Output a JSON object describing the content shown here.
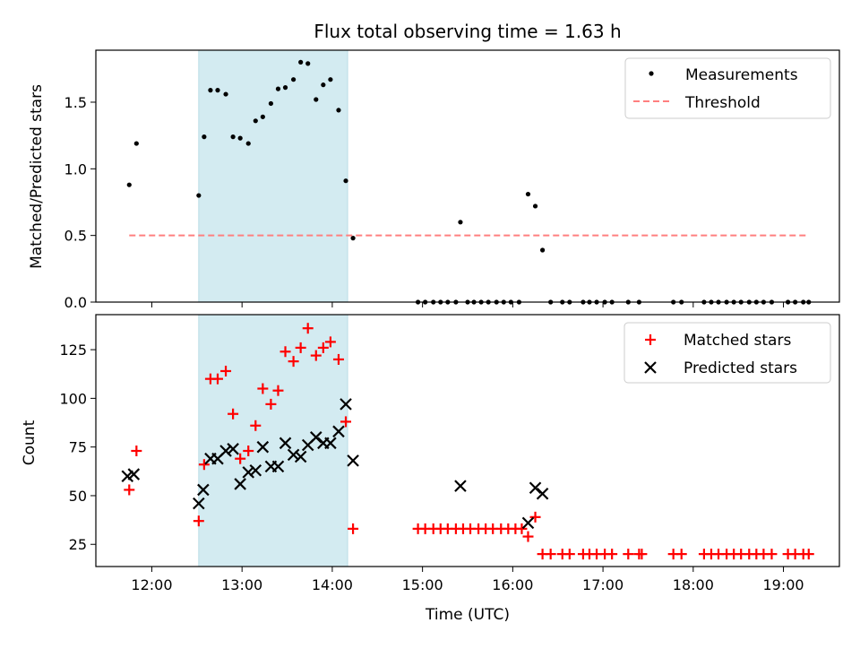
{
  "chart_data": [
    {
      "type": "scatter",
      "title": "Flux total observing time = 1.63 h",
      "xlabel": "",
      "ylabel": "Matched/Predicted stars",
      "x_unit": "hours (UTC)",
      "xlim": [
        11.38,
        19.62
      ],
      "ylim": [
        0,
        1.89
      ],
      "yticks": [
        0.0,
        0.5,
        1.0,
        1.5
      ],
      "ytick_labels": [
        "0.0",
        "0.5",
        "1.0",
        "1.5"
      ],
      "highlight_span": [
        12.52,
        14.17
      ],
      "highlight_color": "#d3ebf1",
      "legend": {
        "position": "top-right",
        "entries": [
          "Measurements",
          "Threshold"
        ]
      },
      "series": [
        {
          "name": "Measurements",
          "marker": "dot",
          "color": "#000000",
          "points": [
            [
              11.75,
              0.88
            ],
            [
              11.83,
              1.19
            ],
            [
              12.52,
              0.8
            ],
            [
              12.58,
              1.24
            ],
            [
              12.65,
              1.59
            ],
            [
              12.73,
              1.59
            ],
            [
              12.82,
              1.56
            ],
            [
              12.9,
              1.24
            ],
            [
              12.98,
              1.23
            ],
            [
              13.07,
              1.19
            ],
            [
              13.15,
              1.36
            ],
            [
              13.23,
              1.39
            ],
            [
              13.32,
              1.49
            ],
            [
              13.4,
              1.6
            ],
            [
              13.48,
              1.61
            ],
            [
              13.57,
              1.67
            ],
            [
              13.65,
              1.8
            ],
            [
              13.73,
              1.79
            ],
            [
              13.82,
              1.52
            ],
            [
              13.9,
              1.63
            ],
            [
              13.98,
              1.67
            ],
            [
              14.07,
              1.44
            ],
            [
              14.15,
              0.91
            ],
            [
              14.23,
              0.48
            ],
            [
              14.95,
              0
            ],
            [
              15.03,
              0
            ],
            [
              15.12,
              0
            ],
            [
              15.2,
              0
            ],
            [
              15.28,
              0
            ],
            [
              15.37,
              0
            ],
            [
              15.42,
              0.6
            ],
            [
              15.5,
              0
            ],
            [
              15.57,
              0
            ],
            [
              15.65,
              0
            ],
            [
              15.73,
              0
            ],
            [
              15.82,
              0
            ],
            [
              15.9,
              0
            ],
            [
              15.98,
              0
            ],
            [
              16.07,
              0
            ],
            [
              16.17,
              0.81
            ],
            [
              16.25,
              0.72
            ],
            [
              16.33,
              0.39
            ],
            [
              16.42,
              0
            ],
            [
              16.55,
              0
            ],
            [
              16.63,
              0
            ],
            [
              16.78,
              0
            ],
            [
              16.85,
              0
            ],
            [
              16.93,
              0
            ],
            [
              17.02,
              0
            ],
            [
              17.1,
              0
            ],
            [
              17.28,
              0
            ],
            [
              17.4,
              0
            ],
            [
              17.78,
              0
            ],
            [
              17.87,
              0
            ],
            [
              18.12,
              0
            ],
            [
              18.2,
              0
            ],
            [
              18.28,
              0
            ],
            [
              18.37,
              0
            ],
            [
              18.45,
              0
            ],
            [
              18.53,
              0
            ],
            [
              18.62,
              0
            ],
            [
              18.7,
              0
            ],
            [
              18.78,
              0
            ],
            [
              18.87,
              0
            ],
            [
              19.05,
              0
            ],
            [
              19.13,
              0
            ],
            [
              19.22,
              0
            ],
            [
              19.28,
              0
            ]
          ]
        },
        {
          "name": "Threshold",
          "style": "dashed",
          "color": "#ff7f7f",
          "points": [
            [
              11.75,
              0.5
            ],
            [
              19.28,
              0.5
            ]
          ]
        }
      ]
    },
    {
      "type": "scatter",
      "title": "",
      "xlabel": "Time (UTC)",
      "ylabel": "Count",
      "x_unit": "hours (UTC)",
      "xlim": [
        11.38,
        19.62
      ],
      "ylim": [
        13.6,
        143.0
      ],
      "yticks": [
        25,
        50,
        75,
        100,
        125
      ],
      "ytick_labels": [
        "25",
        "50",
        "75",
        "100",
        "125"
      ],
      "xticks": [
        12,
        13,
        14,
        15,
        16,
        17,
        18,
        19
      ],
      "xtick_labels": [
        "12:00",
        "13:00",
        "14:00",
        "15:00",
        "16:00",
        "17:00",
        "18:00",
        "19:00"
      ],
      "highlight_span": [
        12.52,
        14.17
      ],
      "highlight_color": "#d3ebf1",
      "legend": {
        "position": "top-right",
        "entries": [
          "Matched stars",
          "Predicted stars"
        ]
      },
      "series": [
        {
          "name": "Matched stars",
          "marker": "plus",
          "color": "#ff0000",
          "points": [
            [
              11.75,
              53
            ],
            [
              11.83,
              73
            ],
            [
              12.52,
              37
            ],
            [
              12.58,
              66
            ],
            [
              12.65,
              110
            ],
            [
              12.73,
              110
            ],
            [
              12.82,
              114
            ],
            [
              12.9,
              92
            ],
            [
              12.98,
              69
            ],
            [
              13.07,
              73
            ],
            [
              13.15,
              86
            ],
            [
              13.23,
              105
            ],
            [
              13.32,
              97
            ],
            [
              13.4,
              104
            ],
            [
              13.48,
              124
            ],
            [
              13.57,
              119
            ],
            [
              13.65,
              126
            ],
            [
              13.73,
              136
            ],
            [
              13.82,
              122
            ],
            [
              13.9,
              126
            ],
            [
              13.98,
              129
            ],
            [
              14.07,
              120
            ],
            [
              14.15,
              88
            ],
            [
              14.23,
              33
            ],
            [
              14.95,
              33
            ],
            [
              15.03,
              33
            ],
            [
              15.12,
              33
            ],
            [
              15.2,
              33
            ],
            [
              15.28,
              33
            ],
            [
              15.37,
              33
            ],
            [
              15.45,
              33
            ],
            [
              15.53,
              33
            ],
            [
              15.62,
              33
            ],
            [
              15.7,
              33
            ],
            [
              15.78,
              33
            ],
            [
              15.87,
              33
            ],
            [
              15.95,
              33
            ],
            [
              16.03,
              33
            ],
            [
              16.1,
              33
            ],
            [
              16.17,
              29
            ],
            [
              16.25,
              39
            ],
            [
              16.33,
              20
            ],
            [
              16.42,
              20
            ],
            [
              16.55,
              20
            ],
            [
              16.63,
              20
            ],
            [
              16.78,
              20
            ],
            [
              16.85,
              20
            ],
            [
              16.93,
              20
            ],
            [
              17.02,
              20
            ],
            [
              17.1,
              20
            ],
            [
              17.28,
              20
            ],
            [
              17.4,
              20
            ],
            [
              17.43,
              20
            ],
            [
              17.78,
              20
            ],
            [
              17.87,
              20
            ],
            [
              18.12,
              20
            ],
            [
              18.2,
              20
            ],
            [
              18.28,
              20
            ],
            [
              18.37,
              20
            ],
            [
              18.45,
              20
            ],
            [
              18.53,
              20
            ],
            [
              18.62,
              20
            ],
            [
              18.7,
              20
            ],
            [
              18.78,
              20
            ],
            [
              18.87,
              20
            ],
            [
              19.05,
              20
            ],
            [
              19.13,
              20
            ],
            [
              19.22,
              20
            ],
            [
              19.28,
              20
            ]
          ]
        },
        {
          "name": "Predicted stars",
          "marker": "x",
          "color": "#000000",
          "points": [
            [
              11.73,
              60
            ],
            [
              11.8,
              61
            ],
            [
              12.52,
              46
            ],
            [
              12.57,
              53
            ],
            [
              12.65,
              69
            ],
            [
              12.73,
              69
            ],
            [
              12.82,
              73
            ],
            [
              12.9,
              74
            ],
            [
              12.98,
              56
            ],
            [
              13.07,
              62
            ],
            [
              13.15,
              63
            ],
            [
              13.23,
              75
            ],
            [
              13.32,
              65
            ],
            [
              13.4,
              65
            ],
            [
              13.48,
              77
            ],
            [
              13.57,
              71
            ],
            [
              13.65,
              70
            ],
            [
              13.73,
              76
            ],
            [
              13.82,
              80
            ],
            [
              13.9,
              77
            ],
            [
              13.98,
              77
            ],
            [
              14.07,
              83
            ],
            [
              14.15,
              97
            ],
            [
              14.23,
              68
            ],
            [
              15.42,
              55
            ],
            [
              16.17,
              36
            ],
            [
              16.25,
              54
            ],
            [
              16.33,
              51
            ]
          ]
        }
      ]
    }
  ]
}
